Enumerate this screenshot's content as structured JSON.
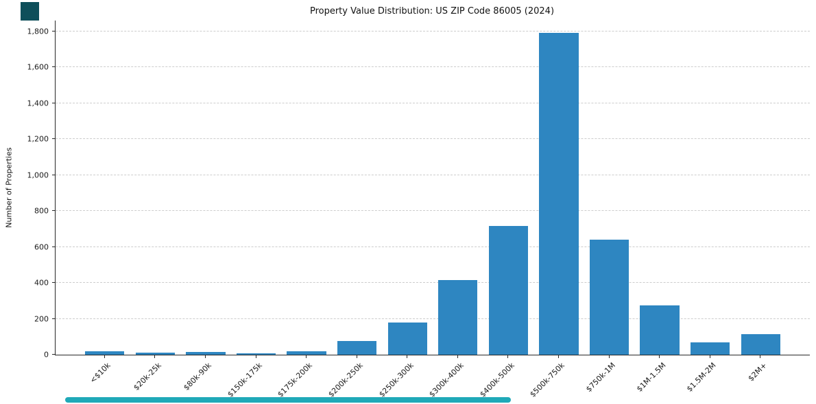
{
  "page": {
    "title": "Property Value Distribution: US ZIP Code 86005 (2024)"
  },
  "chart_data": {
    "type": "bar",
    "title": "Property Value Distribution: US ZIP Code 86005 (2024)",
    "xlabel": "",
    "ylabel": "Number of Properties",
    "categories": [
      "<$10k",
      "$20k-25k",
      "$80k-90k",
      "$150k-175k",
      "$175k-200k",
      "$200k-250k",
      "$250k-300k",
      "$300k-400k",
      "$400k-500k",
      "$500k-750k",
      "$750k-1M",
      "$1M-1.5M",
      "$1.5M-2M",
      "$2M+"
    ],
    "values": [
      20,
      10,
      15,
      8,
      20,
      78,
      180,
      415,
      715,
      1790,
      640,
      275,
      70,
      115
    ],
    "ylim": [
      0,
      1860
    ],
    "yticks": [
      0,
      200,
      400,
      600,
      800,
      1000,
      1200,
      1400,
      1600,
      1800
    ],
    "ytick_labels": [
      "0",
      "200",
      "400",
      "600",
      "800",
      "1,000",
      "1,200",
      "1,400",
      "1,600",
      "1,800"
    ],
    "bar_color": "#2E86C1",
    "grid": "horizontal dashed",
    "legend": "none"
  },
  "decor": {
    "corner_square_color": "#0E4F5A",
    "scrollbar_color": "#1FA9B8"
  }
}
